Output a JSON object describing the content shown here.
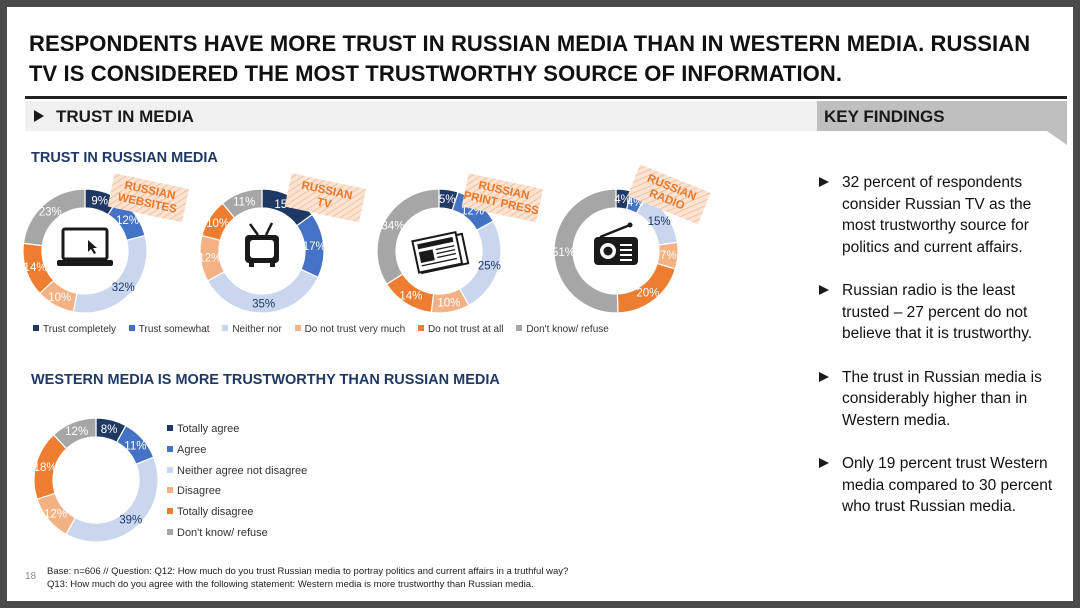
{
  "title": "RESPONDENTS HAVE MORE TRUST IN RUSSIAN MEDIA THAN IN WESTERN MEDIA. RUSSIAN TV IS CONSIDERED THE MOST TRUSTWORTHY SOURCE OF INFORMATION.",
  "section_label": "TRUST IN MEDIA",
  "key_findings_label": "KEY FINDINGS",
  "colors": {
    "dark_blue": "#1f3864",
    "blue": "#4472c4",
    "light_blue": "#c9d6ee",
    "light_orange": "#f4b183",
    "orange": "#ed7d31",
    "gray": "#a6a6a6"
  },
  "chart_data": [
    {
      "type": "pie",
      "subtitle": "TRUST IN RUSSIAN MEDIA",
      "legend": [
        "Trust completely",
        "Trust somewhat",
        "Neither nor",
        "Do not trust very much",
        "Do not trust at all",
        "Don't know/ refuse"
      ],
      "charts": [
        {
          "label": "RUSSIAN WEBSITES",
          "label_lines": [
            "RUSSIAN",
            "WEBSITES"
          ],
          "icon": "laptop-icon",
          "values": [
            9,
            12,
            32,
            10,
            14,
            23
          ]
        },
        {
          "label": "RUSSIAN TV",
          "label_lines": [
            "RUSSIAN",
            "TV"
          ],
          "icon": "tv-icon",
          "values": [
            15,
            17,
            35,
            12,
            10,
            11
          ]
        },
        {
          "label": "RUSSIAN PRINT PRESS",
          "label_lines": [
            "RUSSIAN",
            "PRINT PRESS"
          ],
          "icon": "newspaper-icon",
          "values": [
            5,
            12,
            25,
            10,
            14,
            34
          ]
        },
        {
          "label": "RUSSIAN RADIO",
          "label_lines": [
            "RUSSIAN",
            "RADIO"
          ],
          "icon": "radio-icon",
          "values": [
            4,
            4,
            15,
            7,
            20,
            51
          ]
        }
      ]
    },
    {
      "type": "pie",
      "subtitle": "WESTERN MEDIA IS MORE TRUSTWORTHY THAN RUSSIAN MEDIA",
      "legend": [
        "Totally agree",
        "Agree",
        "Neither agree not disagree",
        "Disagree",
        "Totally disagree",
        "Don't know/ refuse"
      ],
      "values": [
        8,
        11,
        39,
        12,
        18,
        12
      ]
    }
  ],
  "findings": [
    "32 percent of respondents consider Russian TV as the most trustworthy source for politics and current affairs.",
    "Russian radio is the least trusted – 27 percent do not believe that it is trustworthy.",
    "The trust in Russian media is considerably higher than in Western media.",
    "Only 19 percent trust Western media compared to 30 percent who trust Russian media."
  ],
  "page_number": "18",
  "footnote_line1": "Base: n=606 // Question: Q12: How much do you trust Russian media to portray politics and current affairs in a truthful way?",
  "footnote_line2": "Q13: How much do you agree with the following statement: Western media is more trustworthy than Russian media."
}
